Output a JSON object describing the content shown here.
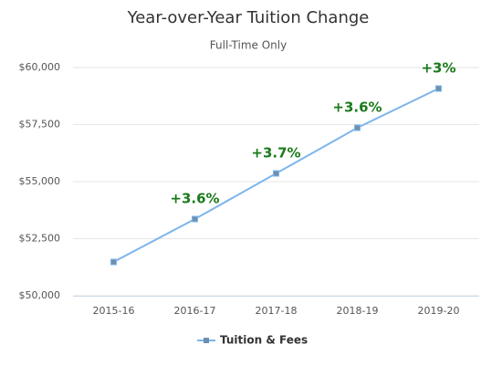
{
  "chart_data": {
    "type": "line",
    "title": "Year-over-Year Tuition Change",
    "subtitle": "Full-Time Only",
    "categories": [
      "2015-16",
      "2016-17",
      "2017-18",
      "2018-19",
      "2019-20"
    ],
    "series": [
      {
        "name": "Tuition & Fees",
        "color": "#7cb5ec",
        "marker_color": "#6f8fae",
        "values": [
          51480,
          53360,
          55360,
          57360,
          59080
        ]
      }
    ],
    "change_labels": [
      null,
      "+3.6%",
      "+3.7%",
      "+3.6%",
      "+3%"
    ],
    "ylim": [
      50000,
      60000
    ],
    "yticks": [
      {
        "value": 50000,
        "label": "$50,000"
      },
      {
        "value": 52500,
        "label": "$52,500"
      },
      {
        "value": 55000,
        "label": "$55,000"
      },
      {
        "value": 57500,
        "label": "$57,500"
      },
      {
        "value": 60000,
        "label": "$60,000"
      }
    ],
    "grid": true
  }
}
